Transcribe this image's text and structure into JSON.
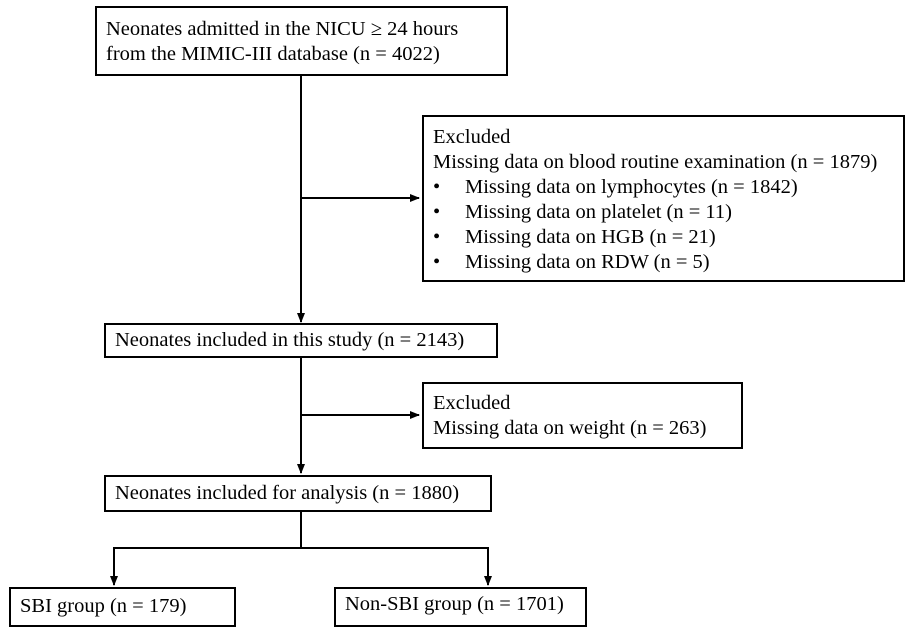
{
  "boxes": {
    "admitted": {
      "line1": "Neonates admitted in the NICU ≥ 24 hours",
      "line2": "from the MIMIC-III database (n = 4022)"
    },
    "excluded1": {
      "title": "Excluded",
      "subtitle": "Missing data on blood routine examination (n = 1879)",
      "items": [
        "Missing data on lymphocytes (n = 1842)",
        "Missing data on platelet (n = 11)",
        "Missing data on HGB (n = 21)",
        "Missing data on RDW (n = 5)"
      ]
    },
    "included_study": {
      "text": "Neonates included in this study (n = 2143)"
    },
    "excluded2": {
      "title": "Excluded",
      "subtitle": "Missing data on weight (n = 263)"
    },
    "included_analysis": {
      "text": "Neonates included for analysis (n = 1880)"
    },
    "sbi": {
      "text": "SBI group (n = 179)"
    },
    "non_sbi": {
      "text": "Non-SBI group (n = 1701)"
    }
  }
}
